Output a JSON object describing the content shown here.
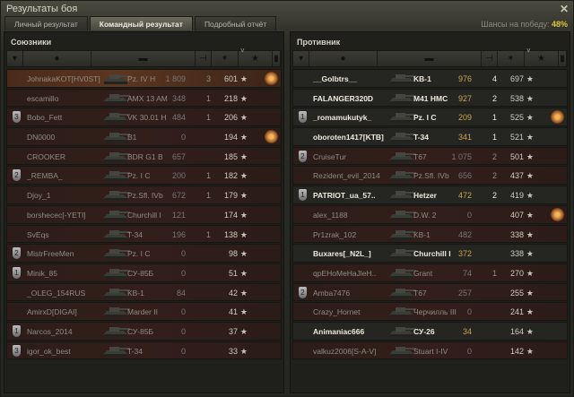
{
  "window": {
    "title": "Результаты боя",
    "close_icon": "close-icon"
  },
  "tabs": [
    {
      "label": "Личный результат",
      "active": false
    },
    {
      "label": "Командный результат",
      "active": true
    },
    {
      "label": "Подробный отчёт",
      "active": false
    }
  ],
  "win_chance": {
    "label": "Шансы на победу:",
    "value": "48%"
  },
  "columns": [
    "badge-icon",
    "player-icon",
    "tank-icon",
    "damage-icon",
    "kills-icon",
    "xp-star-icon",
    "medal-icon"
  ],
  "allies": {
    "title": "Союзники",
    "rows": [
      {
        "name": "JohnakaKOT[HV0ST]",
        "tank": "Pz. IV H",
        "damage": "1 809",
        "kills": "3",
        "xp": "601",
        "badge": "",
        "medal": true,
        "state": "player"
      },
      {
        "name": "escamillo",
        "tank": "AMX 13 AM",
        "damage": "348",
        "kills": "1",
        "xp": "218",
        "badge": "",
        "medal": false,
        "state": "dead"
      },
      {
        "name": "Bobo_Fett",
        "tank": "VK 30.01 H",
        "damage": "484",
        "kills": "1",
        "xp": "206",
        "badge": "3",
        "medal": false,
        "state": "dead"
      },
      {
        "name": "DN0000",
        "tank": "B1",
        "damage": "0",
        "kills": "",
        "xp": "194",
        "badge": "",
        "medal": true,
        "state": "dead"
      },
      {
        "name": "CROOKER",
        "tank": "BDR G1 B",
        "damage": "657",
        "kills": "",
        "xp": "185",
        "badge": "",
        "medal": false,
        "state": "dead"
      },
      {
        "name": "_REMBA_",
        "tank": "Pz. I C",
        "damage": "200",
        "kills": "1",
        "xp": "182",
        "badge": "2",
        "medal": false,
        "state": "dead"
      },
      {
        "name": "Djoy_1",
        "tank": "Pz.Sfl. IVb",
        "damage": "672",
        "kills": "1",
        "xp": "179",
        "badge": "",
        "medal": false,
        "state": "dead"
      },
      {
        "name": "borshecec[-YETI]",
        "tank": "Churchill I",
        "damage": "121",
        "kills": "",
        "xp": "174",
        "badge": "",
        "medal": false,
        "state": "dead"
      },
      {
        "name": "SvEqs",
        "tank": "T-34",
        "damage": "196",
        "kills": "1",
        "xp": "138",
        "badge": "",
        "medal": false,
        "state": "dead"
      },
      {
        "name": "MistrFreeMen",
        "tank": "Pz. I C",
        "damage": "0",
        "kills": "",
        "xp": "98",
        "badge": "2",
        "medal": false,
        "state": "dead"
      },
      {
        "name": "Minik_85",
        "tank": "СУ-85Б",
        "damage": "0",
        "kills": "",
        "xp": "51",
        "badge": "1",
        "medal": false,
        "state": "dead"
      },
      {
        "name": "_OLEG_154RUS",
        "tank": "KB-1",
        "damage": "84",
        "kills": "",
        "xp": "42",
        "badge": "",
        "medal": false,
        "state": "dead"
      },
      {
        "name": "AmirxD[DIGAI]",
        "tank": "Marder II",
        "damage": "0",
        "kills": "",
        "xp": "41",
        "badge": "",
        "medal": false,
        "state": "dead"
      },
      {
        "name": "Narcos_2014",
        "tank": "СУ-85Б",
        "damage": "0",
        "kills": "",
        "xp": "37",
        "badge": "1",
        "medal": false,
        "state": "dead"
      },
      {
        "name": "igor_ok_best",
        "tank": "T-34",
        "damage": "0",
        "kills": "",
        "xp": "33",
        "badge": "3",
        "medal": false,
        "state": "dead"
      }
    ]
  },
  "enemies": {
    "title": "Противник",
    "rows": [
      {
        "name": "__Golbtrs__",
        "tank": "KB-1",
        "damage": "976",
        "kills": "4",
        "xp": "697",
        "badge": "",
        "medal": false,
        "state": "alive"
      },
      {
        "name": "FALANGER320D",
        "tank": "M41 HMC",
        "damage": "927",
        "kills": "2",
        "xp": "538",
        "badge": "",
        "medal": false,
        "state": "alive"
      },
      {
        "name": "_romamukutyk_",
        "tank": "Pz. I C",
        "damage": "209",
        "kills": "1",
        "xp": "525",
        "badge": "1",
        "medal": true,
        "state": "alive"
      },
      {
        "name": "oboroten1417[KTB]",
        "tank": "T-34",
        "damage": "341",
        "kills": "1",
        "xp": "521",
        "badge": "",
        "medal": false,
        "state": "alive"
      },
      {
        "name": "CruiseTur",
        "tank": "T67",
        "damage": "1 075",
        "kills": "2",
        "xp": "501",
        "badge": "2",
        "medal": false,
        "state": "dead"
      },
      {
        "name": "Rezident_evil_2014",
        "tank": "Pz.Sfl. IVb",
        "damage": "656",
        "kills": "2",
        "xp": "437",
        "badge": "",
        "medal": false,
        "state": "dead"
      },
      {
        "name": "PATRIOT_ua_57..",
        "tank": "Hetzer",
        "damage": "472",
        "kills": "2",
        "xp": "419",
        "badge": "1",
        "medal": false,
        "state": "alive"
      },
      {
        "name": "alex_1188",
        "tank": "D.W. 2",
        "damage": "0",
        "kills": "",
        "xp": "407",
        "badge": "",
        "medal": true,
        "state": "dead"
      },
      {
        "name": "Pr1zrak_102",
        "tank": "KB-1",
        "damage": "482",
        "kills": "",
        "xp": "338",
        "badge": "",
        "medal": false,
        "state": "dead"
      },
      {
        "name": "Buxares[_N2L_]",
        "tank": "Churchill I",
        "damage": "372",
        "kills": "",
        "xp": "338",
        "badge": "",
        "medal": false,
        "state": "alive"
      },
      {
        "name": "qpEHoMeHaJleH..",
        "tank": "Grant",
        "damage": "74",
        "kills": "1",
        "xp": "270",
        "badge": "",
        "medal": false,
        "state": "dead"
      },
      {
        "name": "Amba7476",
        "tank": "T67",
        "damage": "257",
        "kills": "",
        "xp": "255",
        "badge": "2",
        "medal": false,
        "state": "dead"
      },
      {
        "name": "Crazy_Hornet",
        "tank": "Черчилль III",
        "damage": "0",
        "kills": "",
        "xp": "241",
        "badge": "",
        "medal": false,
        "state": "dead"
      },
      {
        "name": "Animaniac666",
        "tank": "СУ-26",
        "damage": "34",
        "kills": "",
        "xp": "164",
        "badge": "",
        "medal": false,
        "state": "alive"
      },
      {
        "name": "valkuz2006[S-A-V]",
        "tank": "Stuart I-IV",
        "damage": "0",
        "kills": "",
        "xp": "142",
        "badge": "",
        "medal": false,
        "state": "dead"
      }
    ]
  },
  "colors": {
    "accent": "#d8c83a",
    "damage_alive": "#c9a64a",
    "player_row": "#5d3620"
  }
}
